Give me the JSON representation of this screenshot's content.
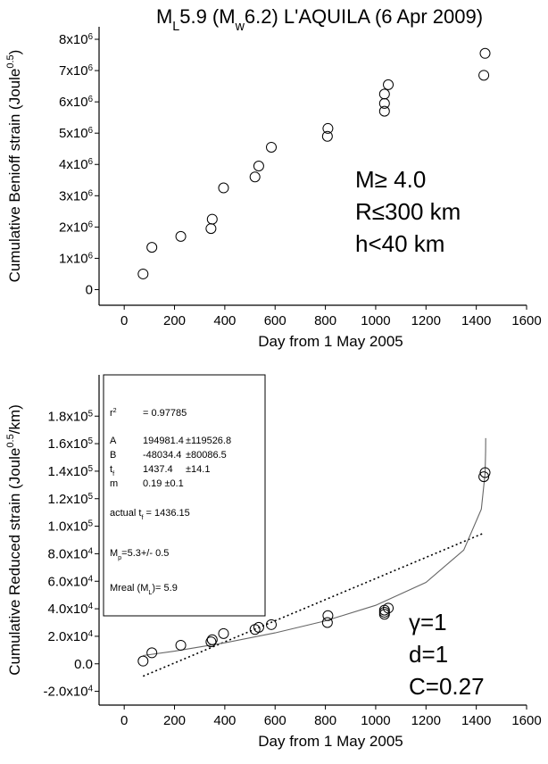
{
  "chart_data": [
    {
      "type": "scatter",
      "title": [
        {
          "t": "M"
        },
        {
          "t": "L",
          "sub": true
        },
        {
          "t": "5.9 (M"
        },
        {
          "t": "w",
          "sub": true
        },
        {
          "t": "6.2) L'AQUILA (6 Apr 2009)"
        }
      ],
      "x_label": [
        {
          "t": "Day from 1 May 2005"
        }
      ],
      "y_label": [
        {
          "t": "Cumulative Benioff strain (Joule"
        },
        {
          "t": "0.5",
          "sup": true
        },
        {
          "t": ")"
        }
      ],
      "xlim": [
        -100,
        1600
      ],
      "xticks": [
        0,
        200,
        400,
        600,
        800,
        1000,
        1200,
        1400,
        1600
      ],
      "ylim": [
        -500000,
        8400000
      ],
      "yticks": [
        0,
        {
          "value": 1000000,
          "label": "1x10",
          "exp": "6"
        },
        {
          "value": 2000000,
          "label": "2x10",
          "exp": "6"
        },
        {
          "value": 3000000,
          "label": "3x10",
          "exp": "6"
        },
        {
          "value": 4000000,
          "label": "4x10",
          "exp": "6"
        },
        {
          "value": 5000000,
          "label": "5x10",
          "exp": "6"
        },
        {
          "value": 6000000,
          "label": "6x10",
          "exp": "6"
        },
        {
          "value": 7000000,
          "label": "7x10",
          "exp": "6"
        },
        {
          "value": 8000000,
          "label": "8x10",
          "exp": "6"
        }
      ],
      "x": [
        75,
        110,
        225,
        345,
        350,
        395,
        520,
        535,
        585,
        808,
        810,
        1035,
        1035,
        1035,
        1050,
        1430,
        1435
      ],
      "values": [
        500000,
        1350000,
        1700000,
        1950000,
        2250000,
        3250000,
        3600000,
        3950000,
        4550000,
        4900000,
        5150000,
        5700000,
        5950000,
        6250000,
        6550000,
        6850000,
        7550000
      ],
      "annotations": [
        "M≥ 4.0",
        "R≤300 km",
        "h<40 km"
      ]
    },
    {
      "type": "scatter",
      "x_label": [
        {
          "t": "Day from 1 May 2005"
        }
      ],
      "y_label": [
        {
          "t": "Cumulative Reduced strain (Joule"
        },
        {
          "t": "0.5",
          "sup": true
        },
        {
          "t": "/km)"
        }
      ],
      "xlim": [
        -100,
        1600
      ],
      "xticks": [
        0,
        200,
        400,
        600,
        800,
        1000,
        1200,
        1400,
        1600
      ],
      "ylim": [
        -30000,
        210000
      ],
      "yticks": [
        {
          "value": -20000,
          "label": "-2.0x10",
          "exp": "4"
        },
        {
          "value": 0,
          "label": "0.0"
        },
        {
          "value": 20000,
          "label": "2.0x10",
          "exp": "4"
        },
        {
          "value": 40000,
          "label": "4.0x10",
          "exp": "4"
        },
        {
          "value": 60000,
          "label": "6.0x10",
          "exp": "4"
        },
        {
          "value": 80000,
          "label": "8.0x10",
          "exp": "4"
        },
        {
          "value": 100000,
          "label": "1.0x10",
          "exp": "5"
        },
        {
          "value": 120000,
          "label": "1.2x10",
          "exp": "5"
        },
        {
          "value": 140000,
          "label": "1.4x10",
          "exp": "5"
        },
        {
          "value": 160000,
          "label": "1.6x10",
          "exp": "5"
        },
        {
          "value": 180000,
          "label": "1.8x10",
          "exp": "5"
        }
      ],
      "x": [
        75,
        110,
        225,
        345,
        350,
        395,
        520,
        535,
        585,
        808,
        810,
        1035,
        1035,
        1035,
        1050,
        1430,
        1435
      ],
      "values": [
        2000,
        8000,
        13500,
        16000,
        17500,
        22000,
        25000,
        26500,
        28500,
        30000,
        35000,
        36000,
        37500,
        39000,
        40500,
        136000,
        139000
      ],
      "fit_curve": {
        "color": "#666666",
        "x": [
          75,
          200,
          400,
          600,
          800,
          1000,
          1200,
          1350,
          1420,
          1435,
          1437,
          1437.3
        ],
        "values": [
          6000,
          9200,
          15300,
          22500,
          31200,
          42500,
          59200,
          82700,
          112400,
          138300,
          154600,
          164000
        ]
      },
      "trend_line": {
        "color": "#000000",
        "x": [
          75,
          1430
        ],
        "values": [
          -9000,
          95000
        ]
      },
      "annotations": [
        "γ=1",
        "d=1",
        "C=0.27"
      ],
      "fit_box": {
        "lines": [
          {
            "cells": [
              [
                {
                  "t": "r"
                },
                {
                  "t": "2",
                  "sup": true
                }
              ],
              [
                {
                  "t": "= 0.97785"
                }
              ]
            ]
          },
          {
            "cells": [
              [
                {
                  "t": "A"
                }
              ],
              [
                {
                  "t": "194981.4"
                }
              ],
              [
                {
                  "t": "±119526.8"
                }
              ]
            ]
          },
          {
            "cells": [
              [
                {
                  "t": "B"
                }
              ],
              [
                {
                  "t": "-48034.4"
                }
              ],
              [
                {
                  "t": "±80086.5"
                }
              ]
            ]
          },
          {
            "cells": [
              [
                {
                  "t": "t"
                },
                {
                  "t": "f",
                  "sub": true
                }
              ],
              [
                {
                  "t": "1437.4"
                }
              ],
              [
                {
                  "t": "±14.1"
                }
              ]
            ]
          },
          {
            "cells": [
              [
                {
                  "t": "m"
                }
              ],
              [
                {
                  "t": "0.19 ±0.1"
                }
              ]
            ]
          },
          {
            "cells": [
              [
                {
                  "t": "actual t"
                },
                {
                  "t": "f",
                  "sub": true
                },
                {
                  "t": " = 1436.15"
                }
              ]
            ]
          },
          {
            "cells": [
              [
                {
                  "t": "M"
                },
                {
                  "t": "p",
                  "sub": true
                },
                {
                  "t": "=5.3+/- 0.5"
                }
              ]
            ]
          },
          {
            "cells": [
              [
                {
                  "t": "Mreal (M"
                },
                {
                  "t": "L",
                  "sub": true
                },
                {
                  "t": ")= 5.9"
                }
              ]
            ]
          }
        ]
      }
    }
  ]
}
